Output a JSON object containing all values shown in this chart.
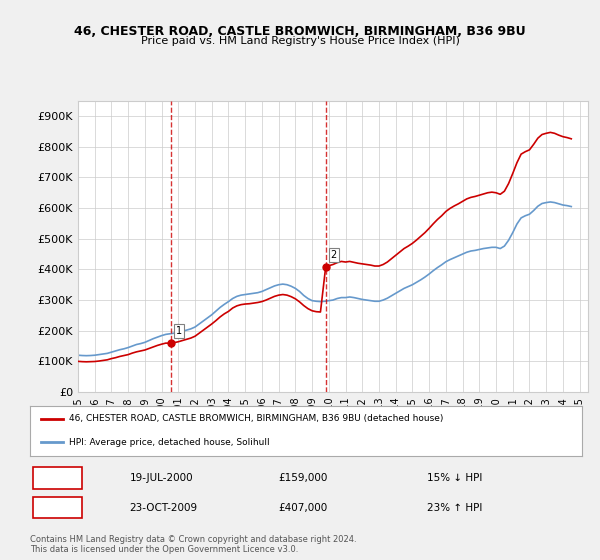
{
  "title_line1": "46, CHESTER ROAD, CASTLE BROMWICH, BIRMINGHAM, B36 9BU",
  "title_line2": "Price paid vs. HM Land Registry's House Price Index (HPI)",
  "ylabel": "",
  "xlim_start": 1995.0,
  "xlim_end": 2025.5,
  "ylim": [
    0,
    950000
  ],
  "yticks": [
    0,
    100000,
    200000,
    300000,
    400000,
    500000,
    600000,
    700000,
    800000,
    900000
  ],
  "ytick_labels": [
    "£0",
    "£100K",
    "£200K",
    "£300K",
    "£400K",
    "£500K",
    "£600K",
    "£700K",
    "£800K",
    "£900K"
  ],
  "xtick_years": [
    1995,
    1996,
    1997,
    1998,
    1999,
    2000,
    2001,
    2002,
    2003,
    2004,
    2005,
    2006,
    2007,
    2008,
    2009,
    2010,
    2011,
    2012,
    2013,
    2014,
    2015,
    2016,
    2017,
    2018,
    2019,
    2020,
    2021,
    2022,
    2023,
    2024,
    2025
  ],
  "purchase1_x": 2000.54,
  "purchase1_y": 159000,
  "purchase1_label": "1",
  "purchase2_x": 2009.81,
  "purchase2_y": 407000,
  "purchase2_label": "2",
  "vline1_x": 2000.54,
  "vline2_x": 2009.81,
  "red_line_color": "#cc0000",
  "blue_line_color": "#6699cc",
  "vline_color": "#cc0000",
  "bg_color": "#f0f0f0",
  "plot_bg_color": "#ffffff",
  "legend_entry1": "46, CHESTER ROAD, CASTLE BROMWICH, BIRMINGHAM, B36 9BU (detached house)",
  "legend_entry2": "HPI: Average price, detached house, Solihull",
  "table_row1": [
    "1",
    "19-JUL-2000",
    "£159,000",
    "15% ↓ HPI"
  ],
  "table_row2": [
    "2",
    "23-OCT-2009",
    "£407,000",
    "23% ↑ HPI"
  ],
  "footer_text": "Contains HM Land Registry data © Crown copyright and database right 2024.\nThis data is licensed under the Open Government Licence v3.0.",
  "hpi_x": [
    1995.0,
    1995.25,
    1995.5,
    1995.75,
    1996.0,
    1996.25,
    1996.5,
    1996.75,
    1997.0,
    1997.25,
    1997.5,
    1997.75,
    1998.0,
    1998.25,
    1998.5,
    1998.75,
    1999.0,
    1999.25,
    1999.5,
    1999.75,
    2000.0,
    2000.25,
    2000.5,
    2000.75,
    2001.0,
    2001.25,
    2001.5,
    2001.75,
    2002.0,
    2002.25,
    2002.5,
    2002.75,
    2003.0,
    2003.25,
    2003.5,
    2003.75,
    2004.0,
    2004.25,
    2004.5,
    2004.75,
    2005.0,
    2005.25,
    2005.5,
    2005.75,
    2006.0,
    2006.25,
    2006.5,
    2006.75,
    2007.0,
    2007.25,
    2007.5,
    2007.75,
    2008.0,
    2008.25,
    2008.5,
    2008.75,
    2009.0,
    2009.25,
    2009.5,
    2009.75,
    2010.0,
    2010.25,
    2010.5,
    2010.75,
    2011.0,
    2011.25,
    2011.5,
    2011.75,
    2012.0,
    2012.25,
    2012.5,
    2012.75,
    2013.0,
    2013.25,
    2013.5,
    2013.75,
    2014.0,
    2014.25,
    2014.5,
    2014.75,
    2015.0,
    2015.25,
    2015.5,
    2015.75,
    2016.0,
    2016.25,
    2016.5,
    2016.75,
    2017.0,
    2017.25,
    2017.5,
    2017.75,
    2018.0,
    2018.25,
    2018.5,
    2018.75,
    2019.0,
    2019.25,
    2019.5,
    2019.75,
    2020.0,
    2020.25,
    2020.5,
    2020.75,
    2021.0,
    2021.25,
    2021.5,
    2021.75,
    2022.0,
    2022.25,
    2022.5,
    2022.75,
    2023.0,
    2023.25,
    2023.5,
    2023.75,
    2024.0,
    2024.25,
    2024.5
  ],
  "hpi_y": [
    120000,
    119000,
    118500,
    119000,
    120000,
    122000,
    124000,
    126000,
    130000,
    134000,
    138000,
    141000,
    145000,
    150000,
    155000,
    158000,
    162000,
    168000,
    174000,
    179000,
    184000,
    188000,
    190000,
    192000,
    194000,
    198000,
    202000,
    206000,
    212000,
    222000,
    232000,
    242000,
    252000,
    264000,
    276000,
    286000,
    295000,
    305000,
    312000,
    316000,
    318000,
    320000,
    322000,
    324000,
    328000,
    334000,
    340000,
    346000,
    350000,
    352000,
    350000,
    345000,
    338000,
    328000,
    315000,
    305000,
    298000,
    296000,
    295000,
    296000,
    298000,
    300000,
    305000,
    308000,
    308000,
    310000,
    308000,
    305000,
    302000,
    300000,
    298000,
    296000,
    296000,
    300000,
    306000,
    314000,
    322000,
    330000,
    338000,
    344000,
    350000,
    358000,
    366000,
    375000,
    385000,
    396000,
    406000,
    415000,
    425000,
    432000,
    438000,
    444000,
    450000,
    456000,
    460000,
    462000,
    465000,
    468000,
    470000,
    472000,
    472000,
    468000,
    476000,
    495000,
    520000,
    548000,
    568000,
    575000,
    580000,
    592000,
    606000,
    615000,
    618000,
    620000,
    618000,
    614000,
    610000,
    608000,
    605000
  ],
  "red_x": [
    1995.0,
    1995.25,
    1995.5,
    1995.75,
    1996.0,
    1996.25,
    1996.5,
    1996.75,
    1997.0,
    1997.25,
    1997.5,
    1997.75,
    1998.0,
    1998.25,
    1998.5,
    1998.75,
    1999.0,
    1999.25,
    1999.5,
    1999.75,
    2000.0,
    2000.25,
    2000.54,
    2000.75,
    2001.0,
    2001.25,
    2001.5,
    2001.75,
    2002.0,
    2002.25,
    2002.5,
    2002.75,
    2003.0,
    2003.25,
    2003.5,
    2003.75,
    2004.0,
    2004.25,
    2004.5,
    2004.75,
    2005.0,
    2005.25,
    2005.5,
    2005.75,
    2006.0,
    2006.25,
    2006.5,
    2006.75,
    2007.0,
    2007.25,
    2007.5,
    2007.75,
    2008.0,
    2008.25,
    2008.5,
    2008.75,
    2009.0,
    2009.25,
    2009.5,
    2009.81,
    2010.0,
    2010.25,
    2010.5,
    2010.75,
    2011.0,
    2011.25,
    2011.5,
    2011.75,
    2012.0,
    2012.25,
    2012.5,
    2012.75,
    2013.0,
    2013.25,
    2013.5,
    2013.75,
    2014.0,
    2014.25,
    2014.5,
    2014.75,
    2015.0,
    2015.25,
    2015.5,
    2015.75,
    2016.0,
    2016.25,
    2016.5,
    2016.75,
    2017.0,
    2017.25,
    2017.5,
    2017.75,
    2018.0,
    2018.25,
    2018.5,
    2018.75,
    2019.0,
    2019.25,
    2019.5,
    2019.75,
    2020.0,
    2020.25,
    2020.5,
    2020.75,
    2021.0,
    2021.25,
    2021.5,
    2021.75,
    2022.0,
    2022.25,
    2022.5,
    2022.75,
    2023.0,
    2023.25,
    2023.5,
    2023.75,
    2024.0,
    2024.25,
    2024.5
  ],
  "red_y": [
    100000,
    99000,
    98500,
    99000,
    99500,
    101000,
    103000,
    105000,
    109000,
    112000,
    116000,
    119000,
    122000,
    127000,
    131000,
    134000,
    137000,
    142000,
    147000,
    152000,
    156000,
    159500,
    159000,
    161000,
    164000,
    168000,
    172000,
    176000,
    182000,
    192000,
    202000,
    212000,
    222000,
    233000,
    245000,
    255000,
    263000,
    274000,
    281000,
    285000,
    287000,
    288000,
    290000,
    292000,
    295000,
    300000,
    306000,
    312000,
    316000,
    318000,
    316000,
    311000,
    304000,
    294000,
    282000,
    272000,
    265000,
    262000,
    261000,
    407000,
    412000,
    416000,
    422000,
    426000,
    424000,
    426000,
    423000,
    420000,
    418000,
    416000,
    414000,
    411000,
    411000,
    416000,
    424000,
    435000,
    446000,
    457000,
    468000,
    476000,
    485000,
    496000,
    508000,
    520000,
    534000,
    549000,
    563000,
    575000,
    589000,
    599000,
    607000,
    614000,
    622000,
    630000,
    635000,
    638000,
    642000,
    646000,
    650000,
    652000,
    650000,
    645000,
    655000,
    680000,
    713000,
    748000,
    776000,
    784000,
    790000,
    808000,
    828000,
    840000,
    844000,
    847000,
    844000,
    838000,
    833000,
    830000,
    826000
  ]
}
